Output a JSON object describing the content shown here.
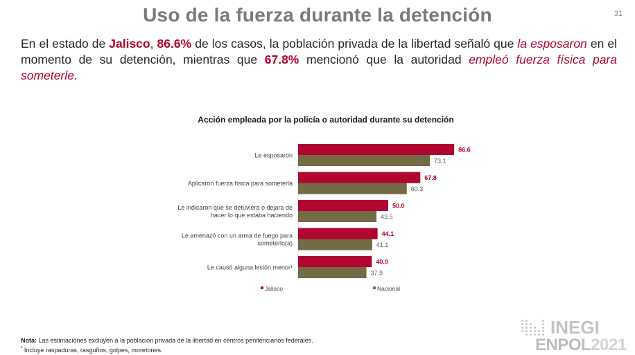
{
  "page": {
    "title": "Uso de la fuerza durante la detención",
    "page_number": "31"
  },
  "lead": {
    "segments": [
      {
        "text": "En el estado de ",
        "style": "normal"
      },
      {
        "text": "Jalisco",
        "style": "hl"
      },
      {
        "text": ", ",
        "style": "normal"
      },
      {
        "text": "86.6%",
        "style": "hl"
      },
      {
        "text": " de los casos, la población privada de la libertad señaló que ",
        "style": "normal"
      },
      {
        "text": "la esposaron",
        "style": "em"
      },
      {
        "text": " en el momento de su detención, mientras que ",
        "style": "normal"
      },
      {
        "text": "67.8%",
        "style": "hl"
      },
      {
        "text": " mencionó que la autoridad ",
        "style": "normal"
      },
      {
        "text": "empleó fuerza física para someterle",
        "style": "em"
      },
      {
        "text": ".",
        "style": "normal"
      }
    ]
  },
  "chart_data": {
    "type": "bar",
    "orientation": "horizontal",
    "title": "Acción empleada por la policía o autoridad durante su detención",
    "categories": [
      [
        "Le esposaron"
      ],
      [
        "Aplicaron fuerza física para someterla"
      ],
      [
        "Le indicaron que se detuviera o dejara de",
        "hacer lo que estaba haciendo"
      ],
      [
        "Le amenazó con un arma de fuego para",
        "someterlo(a)"
      ],
      [
        "Le causó alguna lesión menor¹"
      ]
    ],
    "series": [
      {
        "name": "Jalisco",
        "color": "#b0062f",
        "label_color": "#b0062f",
        "values": [
          86.6,
          67.8,
          50.0,
          44.1,
          40.9
        ]
      },
      {
        "name": "Nacional",
        "color": "#736b45",
        "label_color": "#595959",
        "values": [
          73.1,
          60.3,
          43.5,
          41.1,
          37.9
        ]
      }
    ],
    "xlim": [
      0,
      100
    ],
    "grid": false,
    "legend": "bottom",
    "xlabel": "",
    "ylabel": ""
  },
  "footer": {
    "note_label": "Nota:",
    "note_text": " Las estimaciones excluyen a la población privada de la libertad en centros penitenciarios federales.",
    "footnote_mark": "¹",
    "footnote_text": " Incluye raspaduras, rasguños, golpes, moretones."
  },
  "logo": {
    "brand": "INEGI",
    "survey": "ENPOL",
    "year": "2021"
  }
}
